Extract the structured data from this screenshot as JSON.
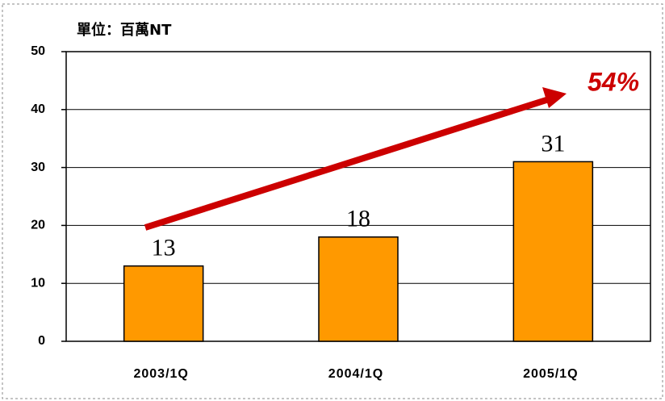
{
  "chart_data": {
    "type": "bar",
    "unit_label": "單位：百萬NT",
    "categories": [
      "2003/1Q",
      "2004/1Q",
      "2005/1Q"
    ],
    "values": [
      13,
      18,
      31
    ],
    "color": "#ff9900",
    "ylim": [
      0,
      50
    ],
    "yticks": [
      0,
      10,
      20,
      30,
      40,
      50
    ],
    "grid": true,
    "annotation": "54%"
  }
}
